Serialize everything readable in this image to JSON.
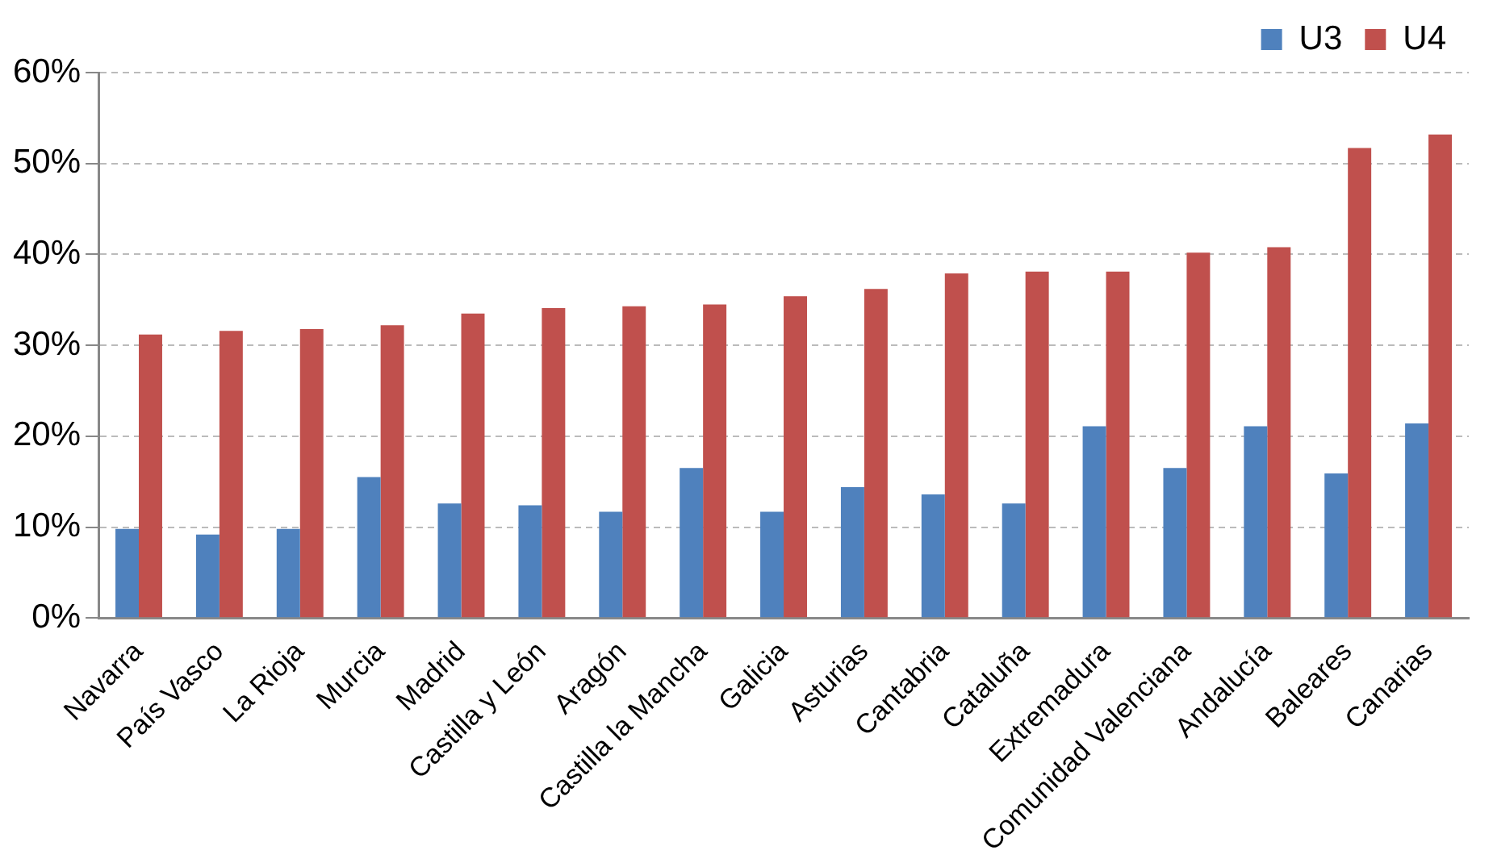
{
  "chart_data": {
    "type": "bar",
    "categories": [
      "Navarra",
      "País Vasco",
      "La Rioja",
      "Murcia",
      "Madrid",
      "Castilla y León",
      "Aragón",
      "Castilla la Mancha",
      "Galicia",
      "Asturias",
      "Cantabria",
      "Cataluña",
      "Extremadura",
      "Comunidad Valenciana",
      "Andalucía",
      "Baleares",
      "Canarias"
    ],
    "series": [
      {
        "name": "U3",
        "color": "#4f81bd",
        "values": [
          9.8,
          9.2,
          9.8,
          15.5,
          12.6,
          12.4,
          11.7,
          16.5,
          11.7,
          14.4,
          13.6,
          12.6,
          21.1,
          16.5,
          21.1,
          15.9,
          21.4
        ]
      },
      {
        "name": "U4",
        "color": "#c0504d",
        "values": [
          31.2,
          31.6,
          31.8,
          32.2,
          33.5,
          34.1,
          34.3,
          34.5,
          35.4,
          36.2,
          37.9,
          38.1,
          38.1,
          40.2,
          40.8,
          51.7,
          53.2
        ]
      }
    ],
    "ylim": [
      0,
      60
    ],
    "yticks": [
      {
        "value": 0,
        "label": "0%"
      },
      {
        "value": 10,
        "label": "10%"
      },
      {
        "value": 20,
        "label": "20%"
      },
      {
        "value": 30,
        "label": "30%"
      },
      {
        "value": 40,
        "label": "40%"
      },
      {
        "value": 50,
        "label": "50%"
      },
      {
        "value": 60,
        "label": "60%"
      }
    ],
    "grid": "y",
    "legend": "top right"
  }
}
